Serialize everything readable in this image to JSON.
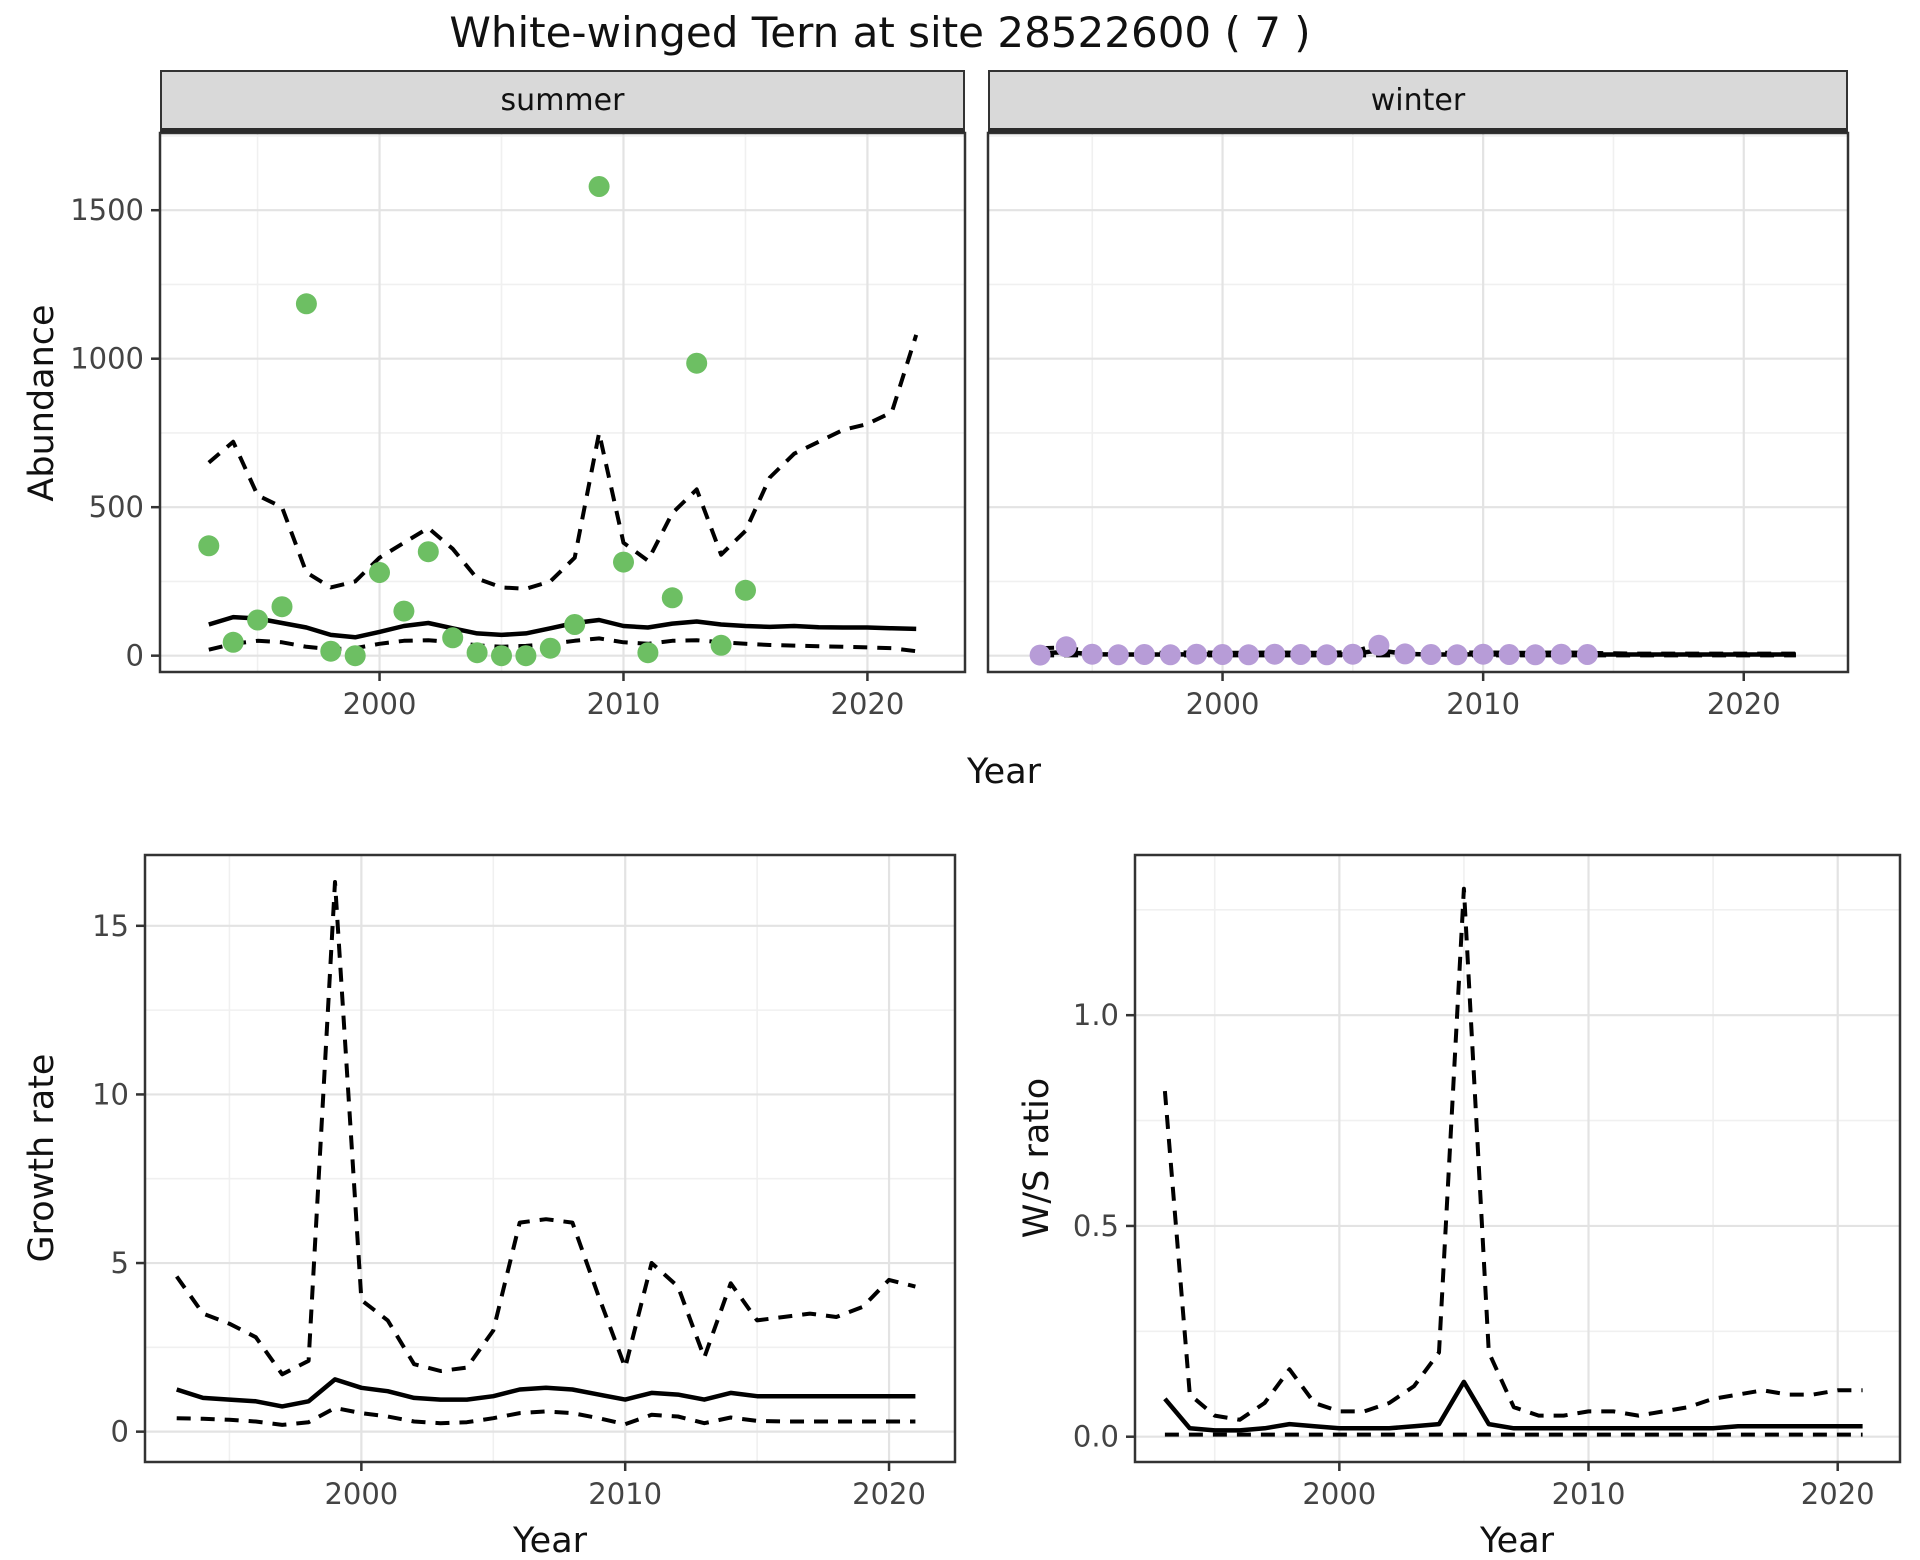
{
  "title": "White-winged Tern at site 28522600 ( 7 )",
  "facets": {
    "summer": "summer",
    "winter": "winter"
  },
  "axis_titles": {
    "abundance": "Abundance",
    "year_top": "Year",
    "growth_rate": "Growth rate",
    "year_growth": "Year",
    "ws_ratio": "W/S ratio",
    "year_ws": "Year"
  },
  "colors": {
    "summer_points": "#6DBF63",
    "winter_points": "#B79CD7",
    "line": "#000000",
    "panel_border": "#333333",
    "grid_major": "#E3E3E3",
    "grid_minor": "#F0F0F0",
    "strip_bg": "#D9D9D9",
    "tick_text": "#444444"
  },
  "chart_data": [
    {
      "id": "abundance-summer",
      "type": "scatter",
      "facet_label": "summer",
      "xlabel": "Year",
      "ylabel": "Abundance",
      "xlim": [
        1991,
        2024
      ],
      "ylim": [
        -55,
        1760
      ],
      "x_major_ticks": [
        2000,
        2010,
        2020
      ],
      "x_tick_labels": [
        "2000",
        "2010",
        "2020"
      ],
      "x_minor_ticks": [
        1995,
        2005,
        2015
      ],
      "y_major_ticks": [
        0,
        500,
        1000,
        1500
      ],
      "y_tick_labels": [
        "0",
        "500",
        "1000",
        "1500"
      ],
      "y_minor_ticks": [
        250,
        750,
        1250,
        1750
      ],
      "point_color": "#6DBF63",
      "series": {
        "observed_points": {
          "x": [
            1993,
            1994,
            1995,
            1996,
            1997,
            1998,
            1999,
            2000,
            2001,
            2002,
            2003,
            2004,
            2005,
            2006,
            2007,
            2008,
            2009,
            2010,
            2011,
            2012,
            2013,
            2014,
            2015
          ],
          "y": [
            370,
            45,
            120,
            165,
            1185,
            15,
            0,
            280,
            150,
            350,
            60,
            10,
            0,
            0,
            25,
            105,
            1580,
            315,
            10,
            195,
            985,
            35,
            220
          ]
        },
        "median": {
          "x": [
            1993,
            1994,
            1995,
            1996,
            1997,
            1998,
            1999,
            2000,
            2001,
            2002,
            2003,
            2004,
            2005,
            2006,
            2007,
            2008,
            2009,
            2010,
            2011,
            2012,
            2013,
            2014,
            2015,
            2016,
            2017,
            2018,
            2019,
            2020,
            2021,
            2022
          ],
          "y": [
            105,
            130,
            125,
            110,
            95,
            70,
            62,
            80,
            100,
            110,
            92,
            75,
            70,
            75,
            92,
            110,
            120,
            100,
            95,
            108,
            115,
            105,
            100,
            97,
            100,
            96,
            95,
            95,
            92,
            90
          ]
        },
        "upper_ci": {
          "x": [
            1993,
            1994,
            1995,
            1996,
            1997,
            1998,
            1999,
            2000,
            2001,
            2002,
            2003,
            2004,
            2005,
            2006,
            2007,
            2008,
            2009,
            2010,
            2011,
            2012,
            2013,
            2014,
            2015,
            2016,
            2017,
            2018,
            2019,
            2020,
            2021,
            2022
          ],
          "y": [
            650,
            720,
            540,
            500,
            280,
            230,
            250,
            330,
            380,
            430,
            360,
            260,
            230,
            225,
            250,
            330,
            750,
            380,
            320,
            480,
            560,
            340,
            420,
            600,
            680,
            720,
            760,
            780,
            820,
            1080
          ]
        },
        "lower_ci": {
          "x": [
            1993,
            1994,
            1995,
            1996,
            1997,
            1998,
            1999,
            2000,
            2001,
            2002,
            2003,
            2004,
            2005,
            2006,
            2007,
            2008,
            2009,
            2010,
            2011,
            2012,
            2013,
            2014,
            2015,
            2016,
            2017,
            2018,
            2019,
            2020,
            2021,
            2022
          ],
          "y": [
            20,
            40,
            50,
            45,
            30,
            22,
            25,
            40,
            50,
            52,
            45,
            35,
            30,
            33,
            40,
            50,
            58,
            45,
            40,
            50,
            52,
            45,
            40,
            36,
            34,
            32,
            30,
            28,
            25,
            15
          ]
        }
      }
    },
    {
      "id": "abundance-winter",
      "type": "scatter",
      "facet_label": "winter",
      "xlabel": "Year",
      "ylabel": "Abundance",
      "xlim": [
        1991,
        2024
      ],
      "ylim": [
        -55,
        1760
      ],
      "x_major_ticks": [
        2000,
        2010,
        2020
      ],
      "x_tick_labels": [
        "2000",
        "2010",
        "2020"
      ],
      "x_minor_ticks": [
        1995,
        2005,
        2015
      ],
      "y_major_ticks": [
        0,
        500,
        1000,
        1500
      ],
      "y_tick_labels": [
        "0",
        "500",
        "1000",
        "1500"
      ],
      "y_minor_ticks": [
        250,
        750,
        1250,
        1750
      ],
      "point_color": "#B79CD7",
      "series": {
        "observed_points": {
          "x": [
            1993,
            1994,
            1995,
            1996,
            1997,
            1998,
            1999,
            2000,
            2001,
            2002,
            2003,
            2004,
            2005,
            2006,
            2007,
            2008,
            2009,
            2010,
            2011,
            2012,
            2013,
            2014
          ],
          "y": [
            2,
            30,
            5,
            3,
            4,
            3,
            5,
            4,
            3,
            5,
            4,
            3,
            5,
            35,
            6,
            4,
            3,
            5,
            4,
            3,
            5,
            4
          ]
        },
        "median": {
          "x": [
            1993,
            1994,
            1995,
            1996,
            1997,
            1998,
            1999,
            2000,
            2001,
            2002,
            2003,
            2004,
            2005,
            2006,
            2007,
            2008,
            2009,
            2010,
            2011,
            2012,
            2013,
            2014,
            2015,
            2016,
            2017,
            2018,
            2019,
            2020,
            2021,
            2022
          ],
          "y": [
            8,
            12,
            5,
            4,
            4,
            4,
            5,
            4,
            4,
            5,
            4,
            4,
            5,
            18,
            6,
            4,
            4,
            5,
            4,
            4,
            5,
            4,
            4,
            4,
            4,
            4,
            4,
            4,
            4,
            4
          ]
        },
        "upper_ci": {
          "x": [
            1993,
            1994,
            1995,
            1996,
            1997,
            1998,
            1999,
            2000,
            2001,
            2002,
            2003,
            2004,
            2005,
            2006,
            2007,
            2008,
            2009,
            2010,
            2011,
            2012,
            2013,
            2014,
            2015,
            2016,
            2017,
            2018,
            2019,
            2020,
            2021,
            2022
          ],
          "y": [
            25,
            28,
            12,
            10,
            10,
            10,
            11,
            10,
            10,
            11,
            10,
            10,
            12,
            40,
            14,
            10,
            10,
            11,
            10,
            10,
            11,
            10,
            8,
            7,
            7,
            7,
            7,
            7,
            7,
            7
          ]
        },
        "lower_ci": {
          "x": [
            1993,
            1994,
            1995,
            1996,
            1997,
            1998,
            1999,
            2000,
            2001,
            2002,
            2003,
            2004,
            2005,
            2006,
            2007,
            2008,
            2009,
            2010,
            2011,
            2012,
            2013,
            2014,
            2015,
            2016,
            2017,
            2018,
            2019,
            2020,
            2021,
            2022
          ],
          "y": [
            1,
            1,
            1,
            1,
            1,
            1,
            1,
            1,
            1,
            1,
            1,
            1,
            1,
            1,
            1,
            1,
            1,
            1,
            1,
            1,
            1,
            1,
            1,
            1,
            1,
            1,
            1,
            1,
            1,
            1
          ]
        }
      }
    },
    {
      "id": "growth-rate",
      "type": "line",
      "facet_label": "",
      "xlabel": "Year",
      "ylabel": "Growth rate",
      "xlim": [
        1991.8,
        2022.5
      ],
      "ylim": [
        -0.9,
        17.1
      ],
      "x_major_ticks": [
        2000,
        2010,
        2020
      ],
      "x_tick_labels": [
        "2000",
        "2010",
        "2020"
      ],
      "x_minor_ticks": [
        1995,
        2005,
        2015
      ],
      "y_major_ticks": [
        0,
        5,
        10,
        15
      ],
      "y_tick_labels": [
        "0",
        "5",
        "10",
        "15"
      ],
      "y_minor_ticks": [
        2.5,
        7.5,
        12.5
      ],
      "point_color": "",
      "series": {
        "median": {
          "x": [
            1993,
            1994,
            1995,
            1996,
            1997,
            1998,
            1999,
            2000,
            2001,
            2002,
            2003,
            2004,
            2005,
            2006,
            2007,
            2008,
            2009,
            2010,
            2011,
            2012,
            2013,
            2014,
            2015,
            2016,
            2017,
            2018,
            2019,
            2020,
            2021
          ],
          "y": [
            1.25,
            1.0,
            0.95,
            0.9,
            0.75,
            0.9,
            1.55,
            1.3,
            1.2,
            1.0,
            0.95,
            0.95,
            1.05,
            1.25,
            1.3,
            1.25,
            1.1,
            0.95,
            1.15,
            1.1,
            0.95,
            1.15,
            1.05,
            1.05,
            1.05,
            1.05,
            1.05,
            1.05,
            1.05
          ]
        },
        "upper_ci": {
          "x": [
            1993,
            1994,
            1995,
            1996,
            1997,
            1998,
            1999,
            2000,
            2001,
            2002,
            2003,
            2004,
            2005,
            2006,
            2007,
            2008,
            2009,
            2010,
            2011,
            2012,
            2013,
            2014,
            2015,
            2016,
            2017,
            2018,
            2019,
            2020,
            2021
          ],
          "y": [
            4.6,
            3.5,
            3.2,
            2.8,
            1.7,
            2.1,
            16.3,
            3.9,
            3.3,
            2.0,
            1.8,
            1.9,
            3.0,
            6.2,
            6.3,
            6.2,
            4.0,
            1.9,
            5.0,
            4.3,
            2.2,
            4.4,
            3.3,
            3.4,
            3.5,
            3.4,
            3.7,
            4.5,
            4.3
          ]
        },
        "lower_ci": {
          "x": [
            1993,
            1994,
            1995,
            1996,
            1997,
            1998,
            1999,
            2000,
            2001,
            2002,
            2003,
            2004,
            2005,
            2006,
            2007,
            2008,
            2009,
            2010,
            2011,
            2012,
            2013,
            2014,
            2015,
            2016,
            2017,
            2018,
            2019,
            2020,
            2021
          ],
          "y": [
            0.4,
            0.38,
            0.35,
            0.3,
            0.2,
            0.28,
            0.7,
            0.55,
            0.45,
            0.3,
            0.25,
            0.28,
            0.4,
            0.55,
            0.6,
            0.55,
            0.4,
            0.22,
            0.5,
            0.45,
            0.25,
            0.42,
            0.32,
            0.3,
            0.3,
            0.3,
            0.3,
            0.3,
            0.3
          ]
        }
      }
    },
    {
      "id": "ws-ratio",
      "type": "line",
      "facet_label": "",
      "xlabel": "Year",
      "ylabel": "W/S ratio",
      "xlim": [
        1991.8,
        2022.5
      ],
      "ylim": [
        -0.06,
        1.38
      ],
      "x_major_ticks": [
        2000,
        2010,
        2020
      ],
      "x_tick_labels": [
        "2000",
        "2010",
        "2020"
      ],
      "x_minor_ticks": [
        1995,
        2005,
        2015
      ],
      "y_major_ticks": [
        0,
        0.5,
        1.0
      ],
      "y_tick_labels": [
        "0.0",
        "0.5",
        "1.0"
      ],
      "y_minor_ticks": [
        0.25,
        0.75,
        1.25
      ],
      "point_color": "",
      "series": {
        "median": {
          "x": [
            1993,
            1994,
            1995,
            1996,
            1997,
            1998,
            1999,
            2000,
            2001,
            2002,
            2003,
            2004,
            2005,
            2006,
            2007,
            2008,
            2009,
            2010,
            2011,
            2012,
            2013,
            2014,
            2015,
            2016,
            2017,
            2018,
            2019,
            2020,
            2021
          ],
          "y": [
            0.09,
            0.02,
            0.015,
            0.015,
            0.02,
            0.03,
            0.025,
            0.02,
            0.02,
            0.02,
            0.025,
            0.03,
            0.13,
            0.03,
            0.02,
            0.02,
            0.02,
            0.02,
            0.02,
            0.02,
            0.02,
            0.02,
            0.02,
            0.025,
            0.025,
            0.025,
            0.025,
            0.025,
            0.025
          ]
        },
        "upper_ci": {
          "x": [
            1993,
            1994,
            1995,
            1996,
            1997,
            1998,
            1999,
            2000,
            2001,
            2002,
            2003,
            2004,
            2005,
            2006,
            2007,
            2008,
            2009,
            2010,
            2011,
            2012,
            2013,
            2014,
            2015,
            2016,
            2017,
            2018,
            2019,
            2020,
            2021
          ],
          "y": [
            0.82,
            0.1,
            0.05,
            0.04,
            0.08,
            0.16,
            0.08,
            0.06,
            0.06,
            0.08,
            0.12,
            0.2,
            1.3,
            0.2,
            0.07,
            0.05,
            0.05,
            0.06,
            0.06,
            0.05,
            0.06,
            0.07,
            0.09,
            0.1,
            0.11,
            0.1,
            0.1,
            0.11,
            0.11
          ]
        },
        "lower_ci": {
          "x": [
            1993,
            1994,
            1995,
            1996,
            1997,
            1998,
            1999,
            2000,
            2001,
            2002,
            2003,
            2004,
            2005,
            2006,
            2007,
            2008,
            2009,
            2010,
            2011,
            2012,
            2013,
            2014,
            2015,
            2016,
            2017,
            2018,
            2019,
            2020,
            2021
          ],
          "y": [
            0.005,
            0.005,
            0.005,
            0.005,
            0.005,
            0.005,
            0.005,
            0.005,
            0.005,
            0.005,
            0.005,
            0.005,
            0.005,
            0.005,
            0.005,
            0.005,
            0.005,
            0.005,
            0.005,
            0.005,
            0.005,
            0.005,
            0.005,
            0.005,
            0.005,
            0.005,
            0.005,
            0.005,
            0.005
          ]
        }
      }
    }
  ]
}
